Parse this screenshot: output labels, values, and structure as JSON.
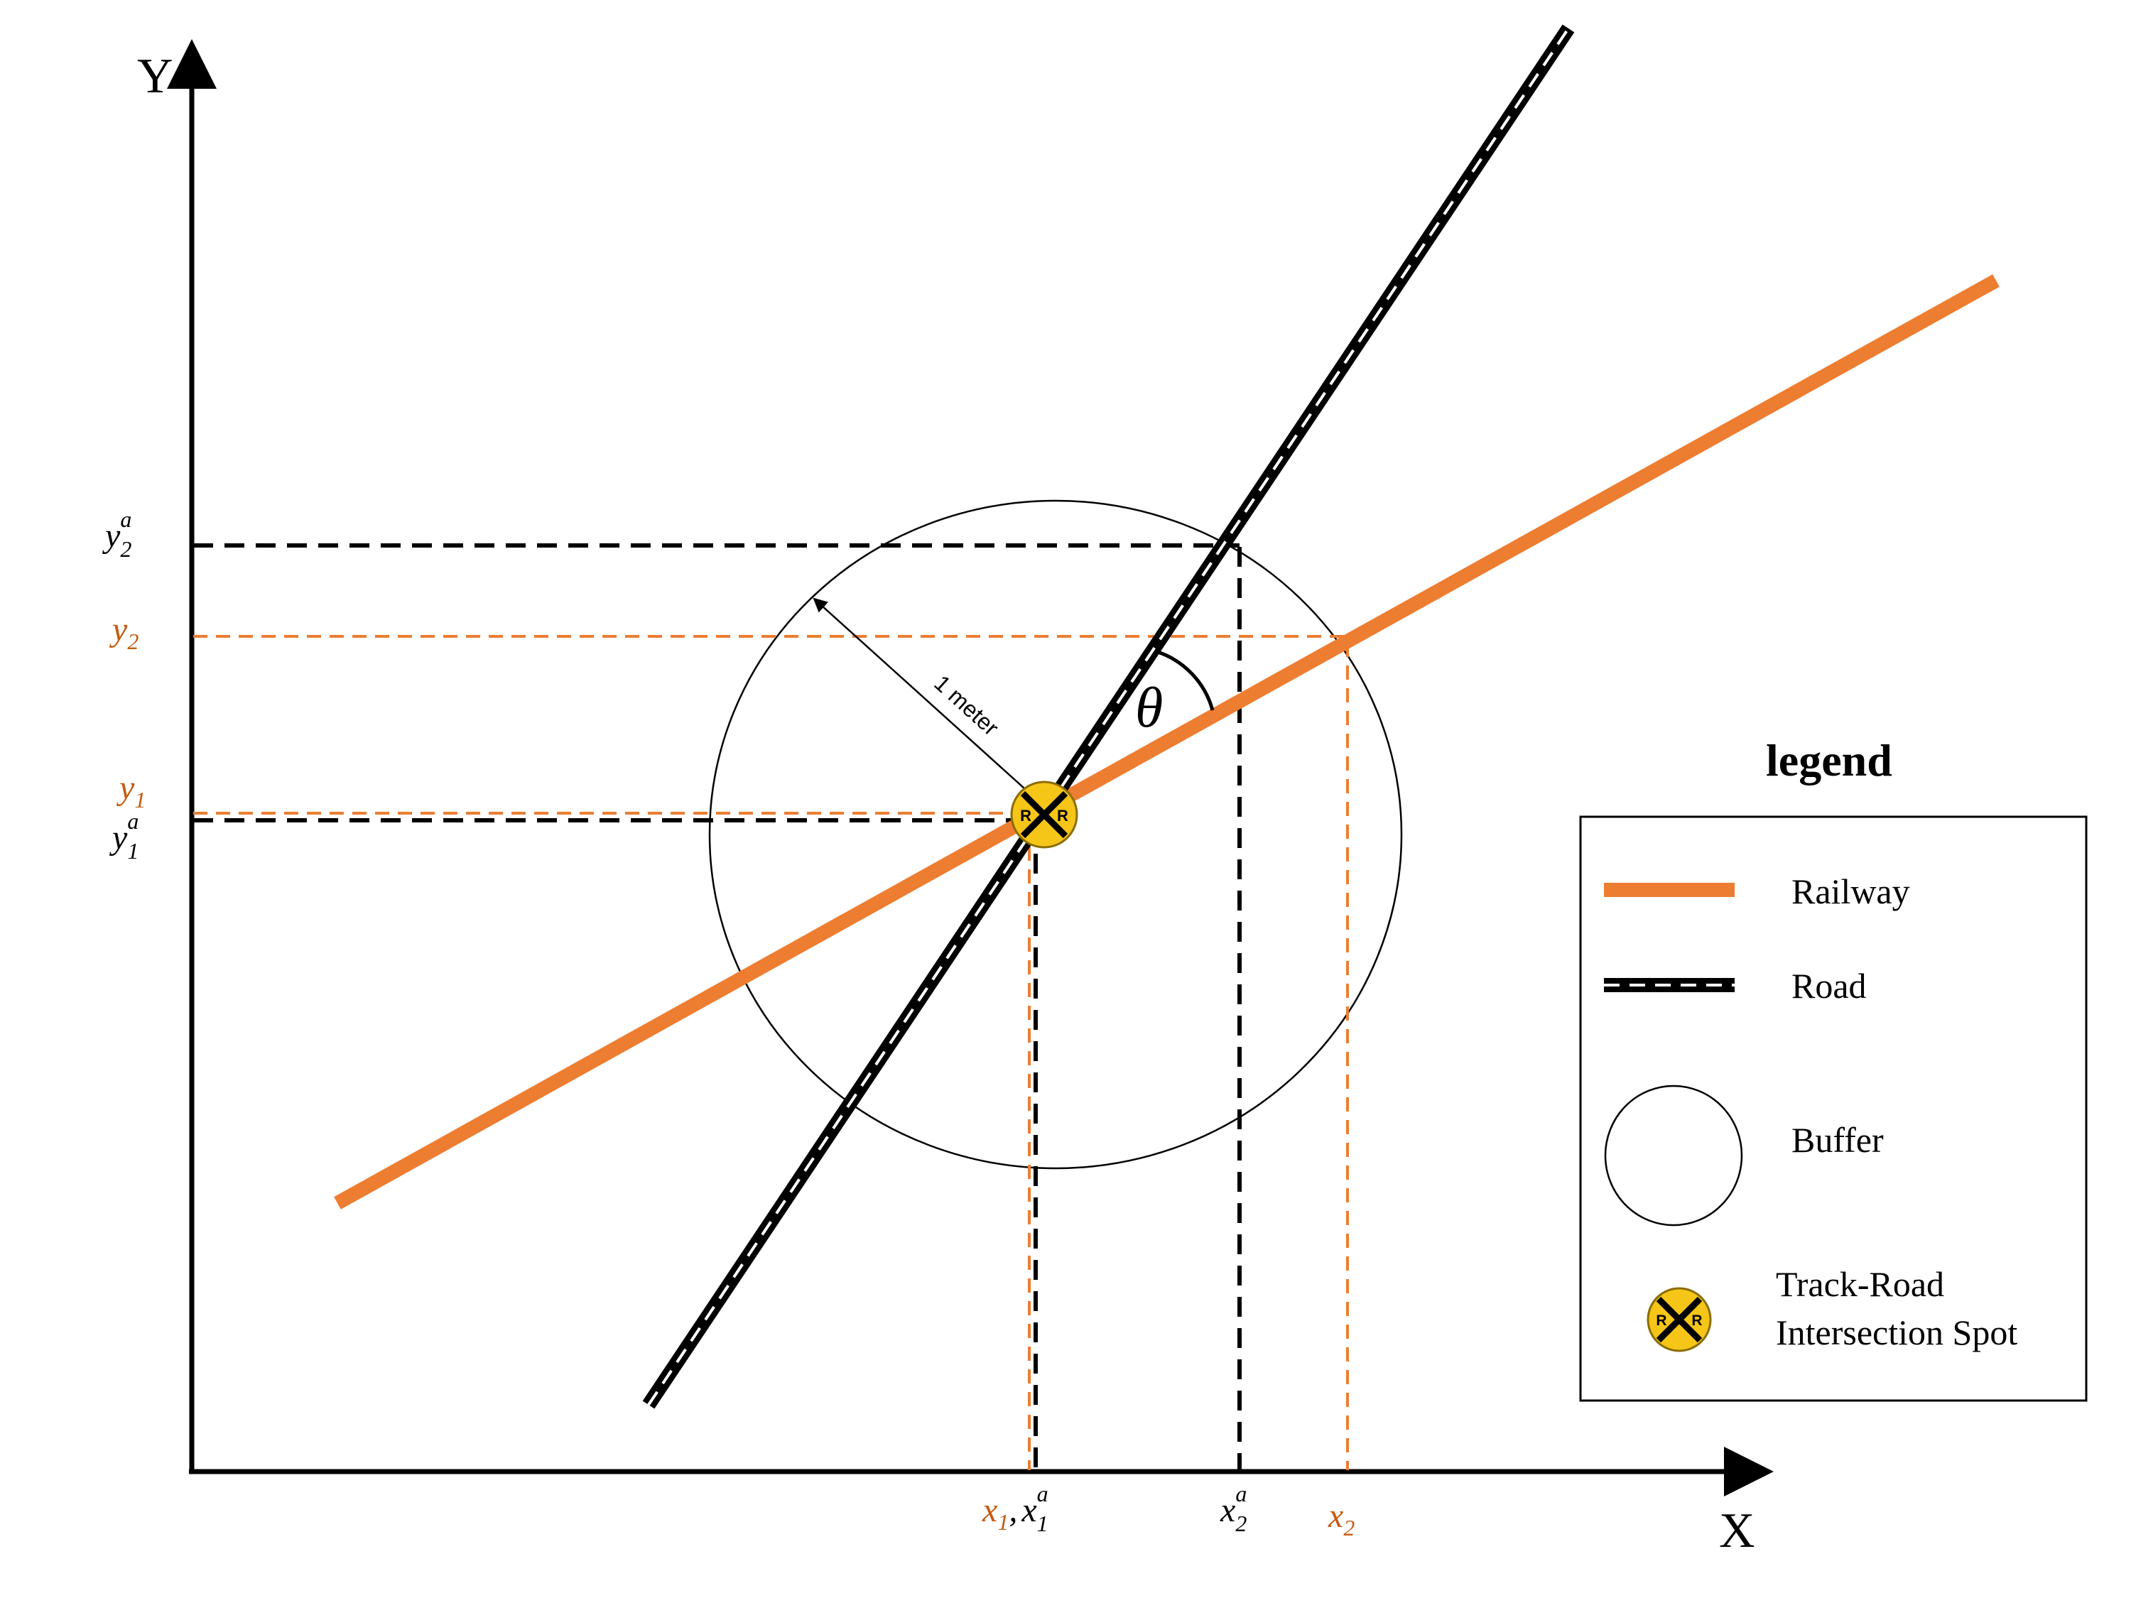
{
  "axes": {
    "x_label": "X",
    "y_label": "Y"
  },
  "ticks": {
    "y2a": {
      "base": "y",
      "sub": "2",
      "sup": "a"
    },
    "y2": {
      "base": "y",
      "sub": "2"
    },
    "y1": {
      "base": "y",
      "sub": "1"
    },
    "y1a": {
      "base": "y",
      "sub": "1",
      "sup": "a"
    },
    "x1_x1a": {
      "a_base": "x",
      "a_sub": "1",
      "sep": ",",
      "b_base": "x",
      "b_sub": "1",
      "b_sup": "a"
    },
    "x2a": {
      "base": "x",
      "sub": "2",
      "sup": "a"
    },
    "x2": {
      "base": "x",
      "sub": "2"
    }
  },
  "annotations": {
    "buffer_radius": "1 meter",
    "angle": "θ",
    "crossing_badge_letter": "R"
  },
  "legend": {
    "title": "legend",
    "items": [
      {
        "label": "Railway"
      },
      {
        "label": "Road"
      },
      {
        "label": "Buffer"
      },
      {
        "label_line1": "Track-Road",
        "label_line2": "Intersection Spot"
      }
    ]
  },
  "colors": {
    "railway": "#ED7D31",
    "road": "#000000",
    "road_dash": "#ffffff",
    "badge": "#F5C518",
    "orange_text": "#C55A11"
  }
}
